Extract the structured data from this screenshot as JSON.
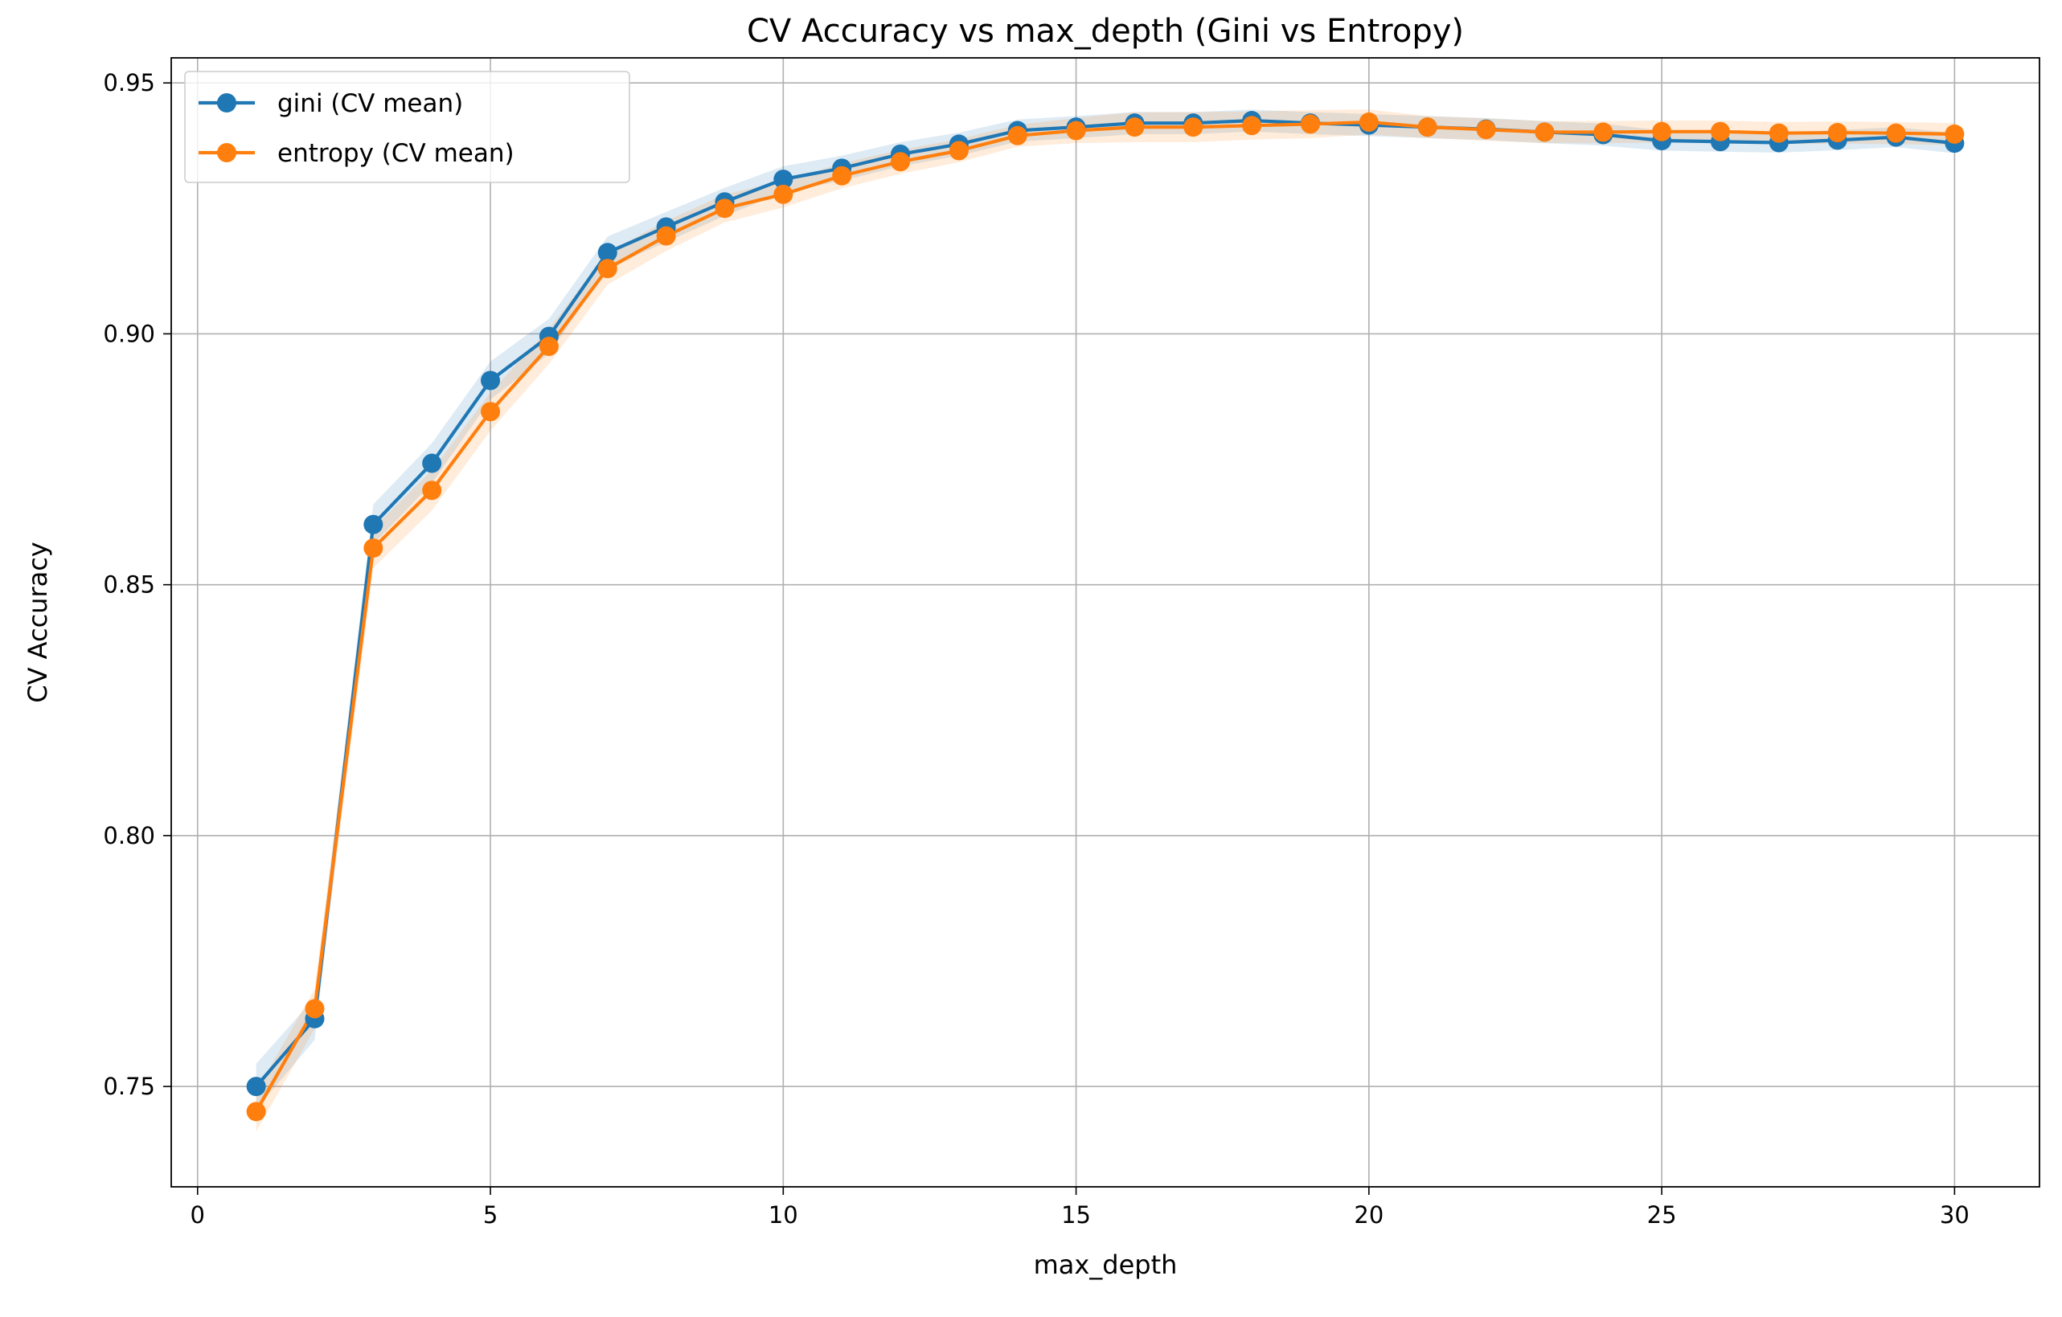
{
  "chart_data": {
    "type": "line",
    "title": "CV Accuracy vs max_depth (Gini vs Entropy)",
    "xlabel": "max_depth",
    "ylabel": "CV Accuracy",
    "xlim": [
      -0.45,
      31.45
    ],
    "ylim": [
      0.73,
      0.955
    ],
    "xticks": [
      0,
      5,
      10,
      15,
      20,
      25,
      30
    ],
    "xtick_labels": [
      "0",
      "5",
      "10",
      "15",
      "20",
      "25",
      "30"
    ],
    "yticks": [
      0.75,
      0.8,
      0.85,
      0.9,
      0.95
    ],
    "ytick_labels": [
      "0.75",
      "0.80",
      "0.85",
      "0.90",
      "0.95"
    ],
    "grid": true,
    "legend_position": "top-left",
    "x": [
      1,
      2,
      3,
      4,
      5,
      6,
      7,
      8,
      9,
      10,
      11,
      12,
      13,
      14,
      15,
      16,
      17,
      18,
      19,
      20,
      21,
      22,
      23,
      24,
      25,
      26,
      27,
      28,
      29,
      30
    ],
    "series": [
      {
        "name": "gini (CV mean)",
        "color": "#1f77b4",
        "values": [
          0.75,
          0.7635,
          0.862,
          0.8742,
          0.8907,
          0.8995,
          0.9162,
          0.9213,
          0.9263,
          0.9308,
          0.933,
          0.9358,
          0.9378,
          0.9405,
          0.9412,
          0.942,
          0.942,
          0.9425,
          0.942,
          0.9416,
          0.9412,
          0.9408,
          0.9402,
          0.9397,
          0.9385,
          0.9383,
          0.9381,
          0.9386,
          0.9392,
          0.938
        ],
        "std": [
          0.0045,
          0.0042,
          0.004,
          0.004,
          0.0038,
          0.0035,
          0.0032,
          0.003,
          0.0028,
          0.0026,
          0.0025,
          0.0024,
          0.0023,
          0.0022,
          0.0022,
          0.0022,
          0.0022,
          0.0022,
          0.0022,
          0.0022,
          0.0022,
          0.0022,
          0.0022,
          0.0022,
          0.002,
          0.002,
          0.002,
          0.002,
          0.002,
          0.002
        ]
      },
      {
        "name": "entropy (CV mean)",
        "color": "#ff7f0e",
        "values": [
          0.745,
          0.7655,
          0.8573,
          0.8688,
          0.8845,
          0.8975,
          0.913,
          0.9195,
          0.925,
          0.9278,
          0.9315,
          0.9343,
          0.9365,
          0.9395,
          0.9405,
          0.9412,
          0.9412,
          0.9415,
          0.9418,
          0.9422,
          0.9412,
          0.9407,
          0.9402,
          0.9402,
          0.9403,
          0.9403,
          0.94,
          0.9401,
          0.94,
          0.9398
        ],
        "std": [
          0.004,
          0.004,
          0.004,
          0.004,
          0.0038,
          0.0035,
          0.0032,
          0.003,
          0.0028,
          0.0026,
          0.0025,
          0.0024,
          0.0023,
          0.0022,
          0.0025,
          0.003,
          0.003,
          0.0028,
          0.0028,
          0.0025,
          0.0022,
          0.0022,
          0.0022,
          0.0022,
          0.0022,
          0.0022,
          0.0022,
          0.0022,
          0.0022,
          0.0022
        ]
      }
    ]
  }
}
